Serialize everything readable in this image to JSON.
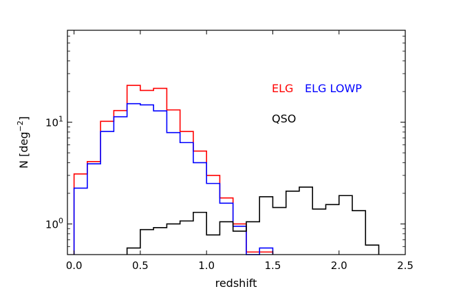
{
  "chart_data": {
    "type": "line",
    "style": "step-histogram",
    "xlabel": "redshift",
    "ylabel": "N [deg",
    "ylabel_exp": "−2",
    "ylabel_close": "]",
    "xlim": [
      -0.05,
      2.5
    ],
    "ylim": [
      0.5,
      80
    ],
    "yscale": "log",
    "x_ticks": [
      {
        "value": 0.0,
        "label": "0.0"
      },
      {
        "value": 0.5,
        "label": "0.5"
      },
      {
        "value": 1.0,
        "label": "1.0"
      },
      {
        "value": 1.5,
        "label": "1.5"
      },
      {
        "value": 2.0,
        "label": "2.0"
      },
      {
        "value": 2.5,
        "label": "2.5"
      }
    ],
    "y_ticks": [
      {
        "value": 1,
        "base": "10",
        "exp": "0"
      },
      {
        "value": 10,
        "base": "10",
        "exp": "1"
      }
    ],
    "bin_edges": [
      0.0,
      0.1,
      0.2,
      0.3,
      0.4,
      0.5,
      0.6,
      0.7,
      0.8,
      0.9,
      1.0,
      1.1,
      1.2,
      1.3,
      1.4,
      1.5,
      1.6,
      1.7,
      1.8,
      1.9,
      2.0,
      2.1,
      2.2,
      2.3
    ],
    "series": [
      {
        "name": "ELG",
        "color": "#ff0000",
        "values": [
          3.1,
          4.1,
          10.2,
          13.0,
          23.0,
          20.5,
          21.5,
          13.2,
          8.1,
          5.2,
          3.0,
          1.8,
          1.0,
          0.53,
          0.53,
          null,
          null,
          null,
          null,
          null,
          null,
          null,
          null
        ]
      },
      {
        "name": "ELG LOWP",
        "color": "#0000ff",
        "values": [
          2.25,
          3.9,
          8.1,
          11.3,
          15.2,
          14.8,
          12.9,
          7.9,
          6.3,
          4.0,
          2.5,
          1.6,
          0.95,
          0.48,
          0.58,
          null,
          null,
          null,
          null,
          null,
          null,
          null,
          null
        ]
      },
      {
        "name": "QSO",
        "color": "#000000",
        "values": [
          null,
          null,
          null,
          null,
          0.58,
          0.88,
          0.92,
          1.0,
          1.07,
          1.3,
          0.78,
          1.05,
          0.85,
          1.05,
          1.85,
          1.45,
          2.1,
          2.3,
          1.4,
          1.55,
          1.9,
          1.35,
          0.62
        ]
      }
    ],
    "legend": [
      {
        "label": "ELG",
        "color": "#ff0000"
      },
      {
        "label": "ELG LOWP",
        "color": "#0000ff"
      },
      {
        "label": "QSO",
        "color": "#000000"
      }
    ]
  }
}
